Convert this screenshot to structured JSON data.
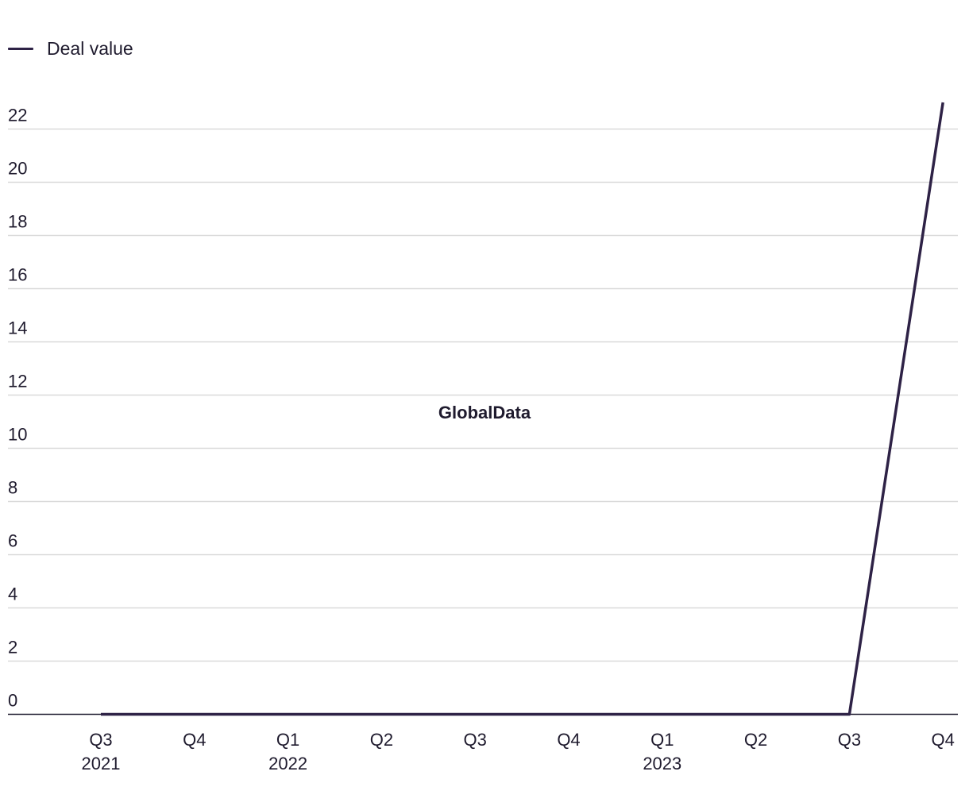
{
  "legend": {
    "label": "Deal value"
  },
  "watermark": "GlobalData",
  "colors": {
    "series": "#2e2246",
    "grid": "#d9d9d9",
    "axis": "#1f1b2e",
    "text": "#1f1b2e"
  },
  "chart_data": {
    "type": "line",
    "title": "",
    "xlabel": "",
    "ylabel": "",
    "ylim": [
      0,
      23
    ],
    "y_ticks": [
      0,
      2,
      4,
      6,
      8,
      10,
      12,
      14,
      16,
      18,
      20,
      22
    ],
    "grid": true,
    "legend_position": "top-left",
    "categories": [
      {
        "quarter": "Q3",
        "year": "2021"
      },
      {
        "quarter": "Q4",
        "year": ""
      },
      {
        "quarter": "Q1",
        "year": "2022"
      },
      {
        "quarter": "Q2",
        "year": ""
      },
      {
        "quarter": "Q3",
        "year": ""
      },
      {
        "quarter": "Q4",
        "year": ""
      },
      {
        "quarter": "Q1",
        "year": "2023"
      },
      {
        "quarter": "Q2",
        "year": ""
      },
      {
        "quarter": "Q3",
        "year": ""
      },
      {
        "quarter": "Q4",
        "year": ""
      }
    ],
    "series": [
      {
        "name": "Deal value",
        "values": [
          0,
          0,
          0,
          0,
          0,
          0,
          0,
          0,
          0,
          23
        ]
      }
    ]
  }
}
